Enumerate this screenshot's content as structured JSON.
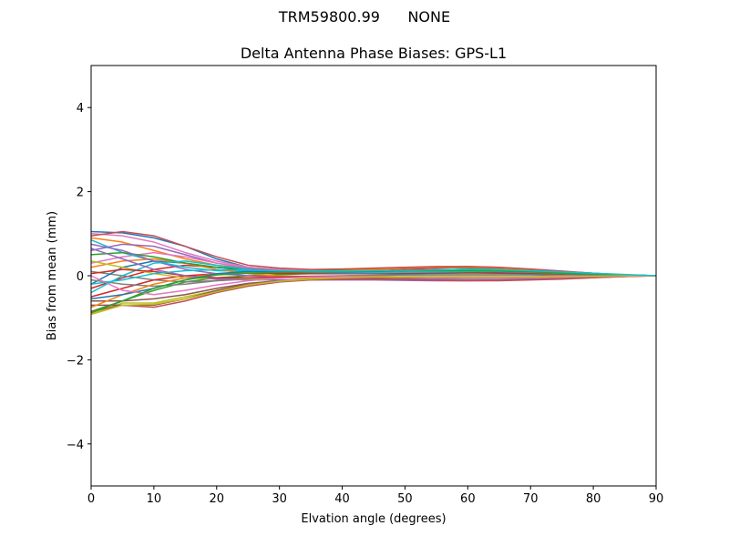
{
  "figure": {
    "suptitle": "TRM59800.99      NONE"
  },
  "chart_data": {
    "type": "line",
    "title": "Delta Antenna Phase Biases: GPS-L1",
    "xlabel": "Elvation angle (degrees)",
    "ylabel": "Bias from mean (mm)",
    "xlim": [
      0,
      90
    ],
    "ylim": [
      -5,
      5
    ],
    "xticks": [
      0,
      10,
      20,
      30,
      40,
      50,
      60,
      70,
      80,
      90
    ],
    "yticks": [
      -4,
      -2,
      0,
      2,
      4
    ],
    "ytick_labels": [
      "−4",
      "−2",
      "0",
      "2",
      "4"
    ],
    "grid": false,
    "x": [
      0,
      5,
      10,
      15,
      20,
      25,
      30,
      35,
      40,
      45,
      50,
      55,
      60,
      65,
      70,
      75,
      80,
      85,
      90
    ],
    "series": [
      {
        "color": "#1f77b4",
        "values": [
          1.05,
          1.02,
          0.9,
          0.7,
          0.4,
          0.2,
          0.15,
          0.1,
          0.08,
          0.06,
          0.05,
          0.05,
          0.05,
          0.04,
          0.04,
          0.03,
          0.02,
          0.01,
          0.0
        ]
      },
      {
        "color": "#ff7f0e",
        "values": [
          0.9,
          0.8,
          0.6,
          0.4,
          0.25,
          0.18,
          0.14,
          0.12,
          0.12,
          0.12,
          0.12,
          0.13,
          0.13,
          0.12,
          0.1,
          0.07,
          0.04,
          0.02,
          0.0
        ]
      },
      {
        "color": "#2ca02c",
        "values": [
          -0.85,
          -0.6,
          -0.35,
          -0.15,
          -0.05,
          0.0,
          0.03,
          0.05,
          0.06,
          0.07,
          0.08,
          0.08,
          0.07,
          0.06,
          0.05,
          0.04,
          0.02,
          0.01,
          0.0
        ]
      },
      {
        "color": "#d62728",
        "values": [
          -0.3,
          -0.05,
          0.15,
          0.25,
          0.2,
          0.15,
          0.12,
          0.1,
          0.1,
          0.12,
          0.15,
          0.18,
          0.2,
          0.18,
          0.15,
          0.1,
          0.05,
          0.02,
          0.0
        ]
      },
      {
        "color": "#9467bd",
        "values": [
          0.6,
          0.75,
          0.7,
          0.5,
          0.3,
          0.18,
          0.12,
          0.1,
          0.1,
          0.1,
          0.12,
          0.14,
          0.15,
          0.14,
          0.12,
          0.08,
          0.05,
          0.02,
          0.0
        ]
      },
      {
        "color": "#8c564b",
        "values": [
          -0.6,
          -0.6,
          -0.55,
          -0.45,
          -0.3,
          -0.18,
          -0.12,
          -0.08,
          -0.06,
          -0.05,
          -0.05,
          -0.06,
          -0.07,
          -0.07,
          -0.06,
          -0.05,
          -0.03,
          -0.01,
          0.0
        ]
      },
      {
        "color": "#e377c2",
        "values": [
          0.3,
          0.45,
          0.55,
          0.45,
          0.3,
          0.2,
          0.15,
          0.13,
          0.13,
          0.15,
          0.18,
          0.2,
          0.22,
          0.2,
          0.15,
          0.1,
          0.05,
          0.02,
          0.0
        ]
      },
      {
        "color": "#7f7f7f",
        "values": [
          0.1,
          0.0,
          -0.1,
          -0.15,
          -0.12,
          -0.08,
          -0.05,
          -0.03,
          -0.02,
          -0.02,
          -0.03,
          -0.04,
          -0.05,
          -0.05,
          -0.04,
          -0.03,
          -0.02,
          -0.01,
          0.0
        ]
      },
      {
        "color": "#bcbd22",
        "values": [
          -0.9,
          -0.65,
          -0.65,
          -0.5,
          -0.35,
          -0.2,
          -0.12,
          -0.06,
          -0.03,
          0.0,
          0.02,
          0.03,
          0.04,
          0.04,
          0.03,
          0.02,
          0.01,
          0.0,
          0.0
        ]
      },
      {
        "color": "#17becf",
        "values": [
          0.85,
          0.55,
          0.35,
          0.2,
          0.12,
          0.1,
          0.08,
          0.07,
          0.07,
          0.07,
          0.08,
          0.09,
          0.1,
          0.09,
          0.07,
          0.05,
          0.03,
          0.01,
          0.0
        ]
      },
      {
        "color": "#1f77b4",
        "values": [
          -0.2,
          0.2,
          0.35,
          0.3,
          0.2,
          0.12,
          0.08,
          0.06,
          0.05,
          0.05,
          0.05,
          0.06,
          0.07,
          0.06,
          0.05,
          0.04,
          0.02,
          0.01,
          0.0
        ]
      },
      {
        "color": "#ff7f0e",
        "values": [
          0.2,
          0.35,
          0.4,
          0.3,
          0.15,
          0.05,
          0.0,
          -0.02,
          -0.03,
          -0.04,
          -0.05,
          -0.06,
          -0.07,
          -0.07,
          -0.06,
          -0.05,
          -0.03,
          -0.01,
          0.0
        ]
      },
      {
        "color": "#2ca02c",
        "values": [
          0.5,
          0.55,
          0.45,
          0.3,
          0.2,
          0.15,
          0.12,
          0.12,
          0.14,
          0.17,
          0.2,
          0.2,
          0.18,
          0.15,
          0.12,
          0.08,
          0.05,
          0.02,
          0.0
        ]
      },
      {
        "color": "#d62728",
        "values": [
          -0.5,
          -0.3,
          -0.1,
          0.0,
          0.05,
          0.06,
          0.06,
          0.05,
          0.05,
          0.05,
          0.06,
          0.07,
          0.08,
          0.07,
          0.06,
          0.04,
          0.03,
          0.01,
          0.0
        ]
      },
      {
        "color": "#9467bd",
        "values": [
          0.75,
          0.6,
          0.35,
          0.15,
          0.05,
          0.0,
          -0.03,
          -0.04,
          -0.05,
          -0.06,
          -0.07,
          -0.08,
          -0.09,
          -0.09,
          -0.08,
          -0.06,
          -0.04,
          -0.02,
          0.0
        ]
      },
      {
        "color": "#8c564b",
        "values": [
          -0.7,
          -0.7,
          -0.7,
          -0.55,
          -0.35,
          -0.2,
          -0.12,
          -0.08,
          -0.06,
          -0.05,
          -0.05,
          -0.05,
          -0.06,
          -0.06,
          -0.05,
          -0.04,
          -0.03,
          -0.01,
          0.0
        ]
      },
      {
        "color": "#e377c2",
        "values": [
          1.0,
          0.95,
          0.8,
          0.55,
          0.35,
          0.2,
          0.15,
          0.12,
          0.1,
          0.1,
          0.1,
          0.11,
          0.12,
          0.11,
          0.09,
          0.06,
          0.04,
          0.02,
          0.0
        ]
      },
      {
        "color": "#7f7f7f",
        "values": [
          -0.1,
          -0.2,
          -0.25,
          -0.2,
          -0.12,
          -0.06,
          -0.03,
          -0.01,
          0.0,
          0.01,
          0.02,
          0.02,
          0.02,
          0.02,
          0.02,
          0.01,
          0.01,
          0.0,
          0.0
        ]
      },
      {
        "color": "#bcbd22",
        "values": [
          0.35,
          0.2,
          0.05,
          -0.05,
          -0.08,
          -0.07,
          -0.05,
          -0.04,
          -0.03,
          -0.03,
          -0.04,
          -0.05,
          -0.06,
          -0.06,
          -0.05,
          -0.04,
          -0.02,
          -0.01,
          0.0
        ]
      },
      {
        "color": "#17becf",
        "values": [
          -0.4,
          0.0,
          0.3,
          0.35,
          0.25,
          0.15,
          0.1,
          0.08,
          0.07,
          0.07,
          0.08,
          0.09,
          0.1,
          0.1,
          0.08,
          0.06,
          0.04,
          0.02,
          0.0
        ]
      },
      {
        "color": "#d62728",
        "values": [
          0.05,
          0.15,
          0.1,
          0.0,
          -0.05,
          -0.05,
          -0.03,
          -0.02,
          -0.02,
          -0.02,
          -0.03,
          -0.04,
          -0.05,
          -0.05,
          -0.04,
          -0.03,
          -0.02,
          -0.01,
          0.0
        ]
      },
      {
        "color": "#ff7f0e",
        "values": [
          -0.75,
          -0.45,
          -0.2,
          -0.05,
          0.05,
          0.08,
          0.09,
          0.1,
          0.12,
          0.15,
          0.18,
          0.2,
          0.2,
          0.18,
          0.14,
          0.1,
          0.06,
          0.02,
          0.0
        ]
      },
      {
        "color": "#9467bd",
        "values": [
          0.65,
          0.4,
          0.15,
          0.0,
          -0.08,
          -0.1,
          -0.1,
          -0.1,
          -0.1,
          -0.1,
          -0.11,
          -0.12,
          -0.12,
          -0.11,
          -0.09,
          -0.07,
          -0.04,
          -0.02,
          0.0
        ]
      },
      {
        "color": "#1f77b4",
        "values": [
          -0.55,
          -0.45,
          -0.3,
          -0.1,
          0.05,
          0.1,
          0.1,
          0.09,
          0.09,
          0.1,
          0.12,
          0.14,
          0.15,
          0.14,
          0.12,
          0.09,
          0.05,
          0.02,
          0.0
        ]
      },
      {
        "color": "#c44e52",
        "values": [
          0.95,
          1.05,
          0.95,
          0.7,
          0.45,
          0.25,
          0.18,
          0.15,
          0.16,
          0.18,
          0.2,
          0.22,
          0.22,
          0.2,
          0.16,
          0.11,
          0.06,
          0.02,
          0.0
        ]
      },
      {
        "color": "#c44e52",
        "values": [
          -0.85,
          -0.7,
          -0.75,
          -0.6,
          -0.4,
          -0.25,
          -0.15,
          -0.1,
          -0.08,
          -0.08,
          -0.09,
          -0.11,
          -0.12,
          -0.12,
          -0.1,
          -0.08,
          -0.05,
          -0.02,
          0.0
        ]
      },
      {
        "color": "#e377c2",
        "values": [
          0.0,
          -0.35,
          -0.45,
          -0.35,
          -0.22,
          -0.12,
          -0.06,
          -0.03,
          -0.02,
          -0.02,
          -0.03,
          -0.04,
          -0.05,
          -0.05,
          -0.04,
          -0.03,
          -0.02,
          -0.01,
          0.0
        ]
      },
      {
        "color": "#2ca02c",
        "values": [
          -0.88,
          -0.6,
          -0.3,
          -0.1,
          0.02,
          0.06,
          0.08,
          0.09,
          0.1,
          0.11,
          0.12,
          0.12,
          0.12,
          0.11,
          0.09,
          0.06,
          0.04,
          0.02,
          0.0
        ]
      },
      {
        "color": "#bcbd22",
        "values": [
          -0.92,
          -0.7,
          -0.68,
          -0.55,
          -0.38,
          -0.22,
          -0.13,
          -0.08,
          -0.05,
          -0.03,
          -0.02,
          -0.02,
          -0.02,
          -0.02,
          -0.02,
          -0.01,
          -0.01,
          0.0,
          0.0
        ]
      },
      {
        "color": "#17becf",
        "values": [
          -0.2,
          -0.1,
          0.05,
          0.12,
          0.14,
          0.13,
          0.12,
          0.11,
          0.11,
          0.12,
          0.13,
          0.14,
          0.15,
          0.14,
          0.12,
          0.09,
          0.06,
          0.03,
          0.0
        ]
      }
    ]
  }
}
